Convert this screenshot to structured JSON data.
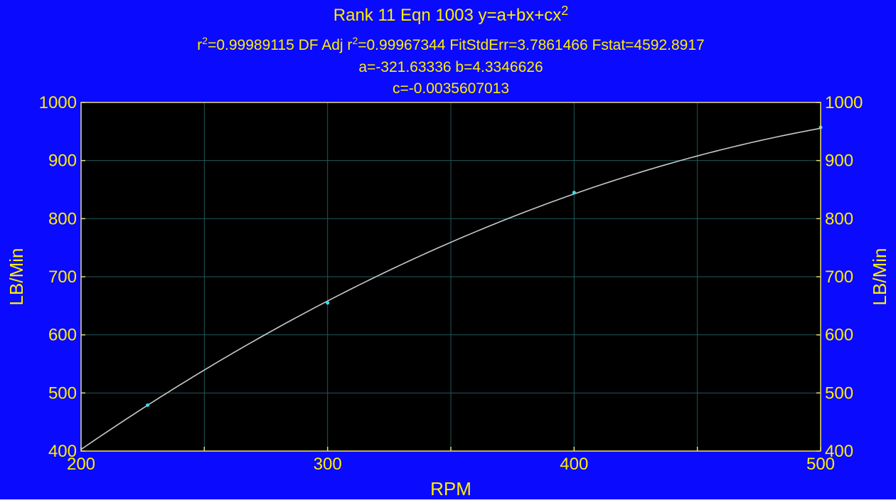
{
  "chart_data": {
    "type": "line",
    "title_parts": {
      "prefix": "Rank 11  Eqn 1003  y=a+bx+cx",
      "exponent": "2"
    },
    "stats_parts": {
      "r2_label": "r",
      "r2_exp": "2",
      "r2_value": "=0.99989115  DF Adj r",
      "adj_exp": "2",
      "adj_value": "=0.99967344  FitStdErr=3.7861466  Fstat=4592.8917"
    },
    "coef_line1": "a=-321.63336 b=4.3346626",
    "coef_line2": "c=-0.0035607013",
    "xlabel": "RPM",
    "ylabel_left": "LB/Min",
    "ylabel_right": "LB/Min",
    "xlim": [
      200,
      500
    ],
    "ylim": [
      400,
      1000
    ],
    "x_ticks": [
      "200",
      "300",
      "400",
      "500"
    ],
    "y_ticks": [
      "400",
      "500",
      "600",
      "700",
      "800",
      "900",
      "1000"
    ],
    "coefficients": {
      "a": -321.63336,
      "b": 4.3346626,
      "c": -0.0035607013
    },
    "curve_x_range": [
      200,
      500
    ],
    "points": [
      {
        "x": 227,
        "y": 479
      },
      {
        "x": 300,
        "y": 655
      },
      {
        "x": 400,
        "y": 845
      },
      {
        "x": 500,
        "y": 957
      }
    ],
    "grid": true,
    "colors": {
      "background": "#0a0aff",
      "plot_bg": "#000000",
      "text": "#ffee00",
      "axis": "#e8e070",
      "grid": "#1f5a5a",
      "curve": "#c8c8c8",
      "points": "#30e0f0"
    }
  }
}
